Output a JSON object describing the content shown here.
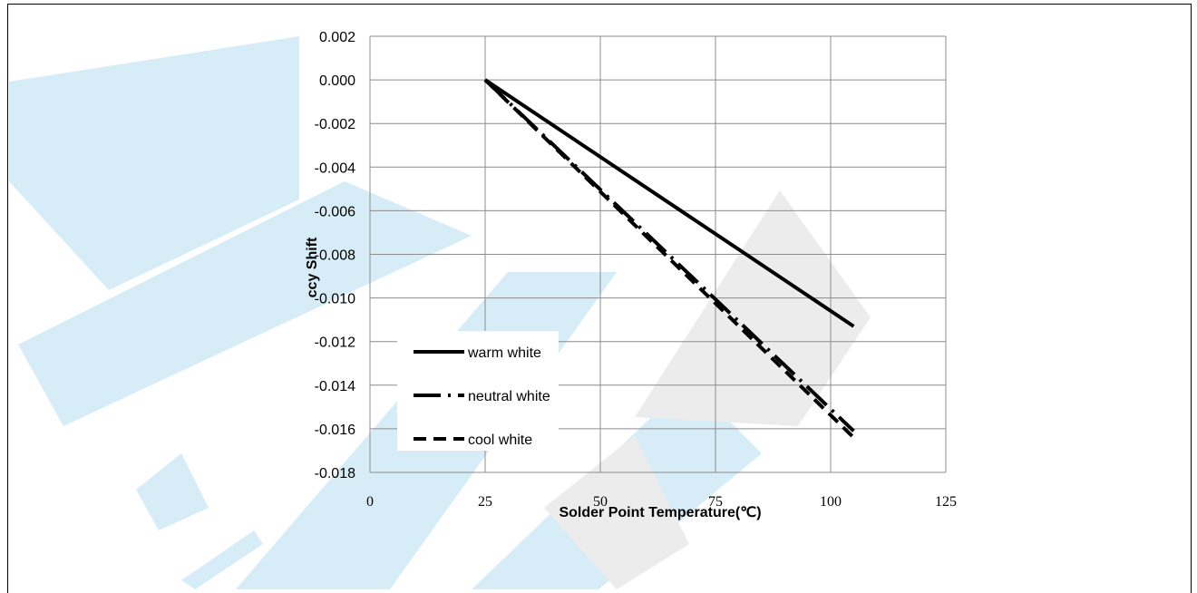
{
  "chart_data": {
    "type": "line",
    "xlabel": "Solder Point Temperature(℃)",
    "ylabel": "ccy Shift",
    "xlim": [
      0,
      125
    ],
    "ylim": [
      -0.018,
      0.002
    ],
    "x_ticks": [
      "0",
      "25",
      "50",
      "75",
      "100",
      "125"
    ],
    "y_ticks": [
      "0.002",
      "0.000",
      "-0.002",
      "-0.004",
      "-0.006",
      "-0.008",
      "-0.010",
      "-0.012",
      "-0.014",
      "-0.016",
      "-0.018"
    ],
    "grid": true,
    "legend_position": "bottom-left",
    "series": [
      {
        "name": "warm white",
        "style": "solid",
        "x": [
          25,
          105
        ],
        "y": [
          0.0,
          -0.0113
        ]
      },
      {
        "name": "neutral white",
        "style": "long-dash-dot",
        "x": [
          25,
          105
        ],
        "y": [
          0.0,
          -0.0161
        ]
      },
      {
        "name": "cool white",
        "style": "dashed",
        "x": [
          25,
          105
        ],
        "y": [
          0.0,
          -0.0164
        ]
      }
    ]
  },
  "watermark": {
    "color": "#d6ecf6",
    "color2": "#ececec"
  }
}
